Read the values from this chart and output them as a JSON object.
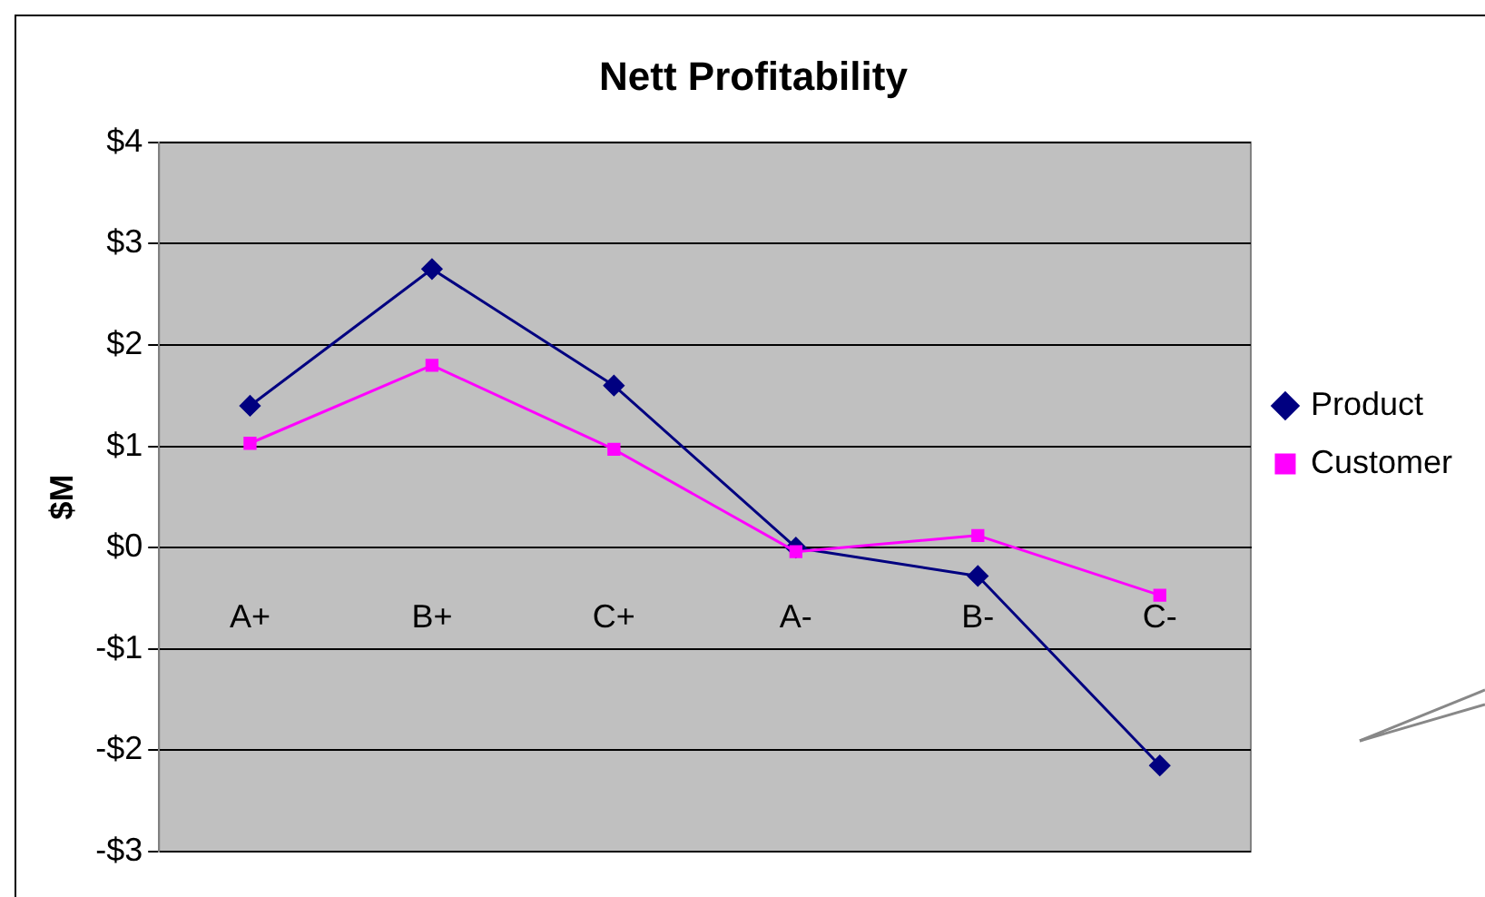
{
  "chart_data": {
    "type": "line",
    "title": "Nett Profitability",
    "ylabel": "$M",
    "categories": [
      "A+",
      "B+",
      "C+",
      "A-",
      "B-",
      "C-"
    ],
    "series": [
      {
        "name": "Product",
        "color": "#000080",
        "marker": "diamond",
        "values": [
          1.4,
          2.75,
          1.6,
          0,
          -0.28,
          -2.15
        ]
      },
      {
        "name": "Customer",
        "color": "#ff00ff",
        "marker": "square",
        "values": [
          1.03,
          1.8,
          0.97,
          -0.04,
          0.12,
          -0.47
        ]
      }
    ],
    "ylim": [
      -3,
      4
    ],
    "yticks": [
      {
        "value": -3,
        "label": "-$3"
      },
      {
        "value": -2,
        "label": "-$2"
      },
      {
        "value": -1,
        "label": "-$1"
      },
      {
        "value": 0,
        "label": "$0"
      },
      {
        "value": 1,
        "label": "$1"
      },
      {
        "value": 2,
        "label": "$2"
      },
      {
        "value": 3,
        "label": "$3"
      },
      {
        "value": 4,
        "label": "$4"
      }
    ],
    "grid": "y",
    "legend": "right"
  }
}
